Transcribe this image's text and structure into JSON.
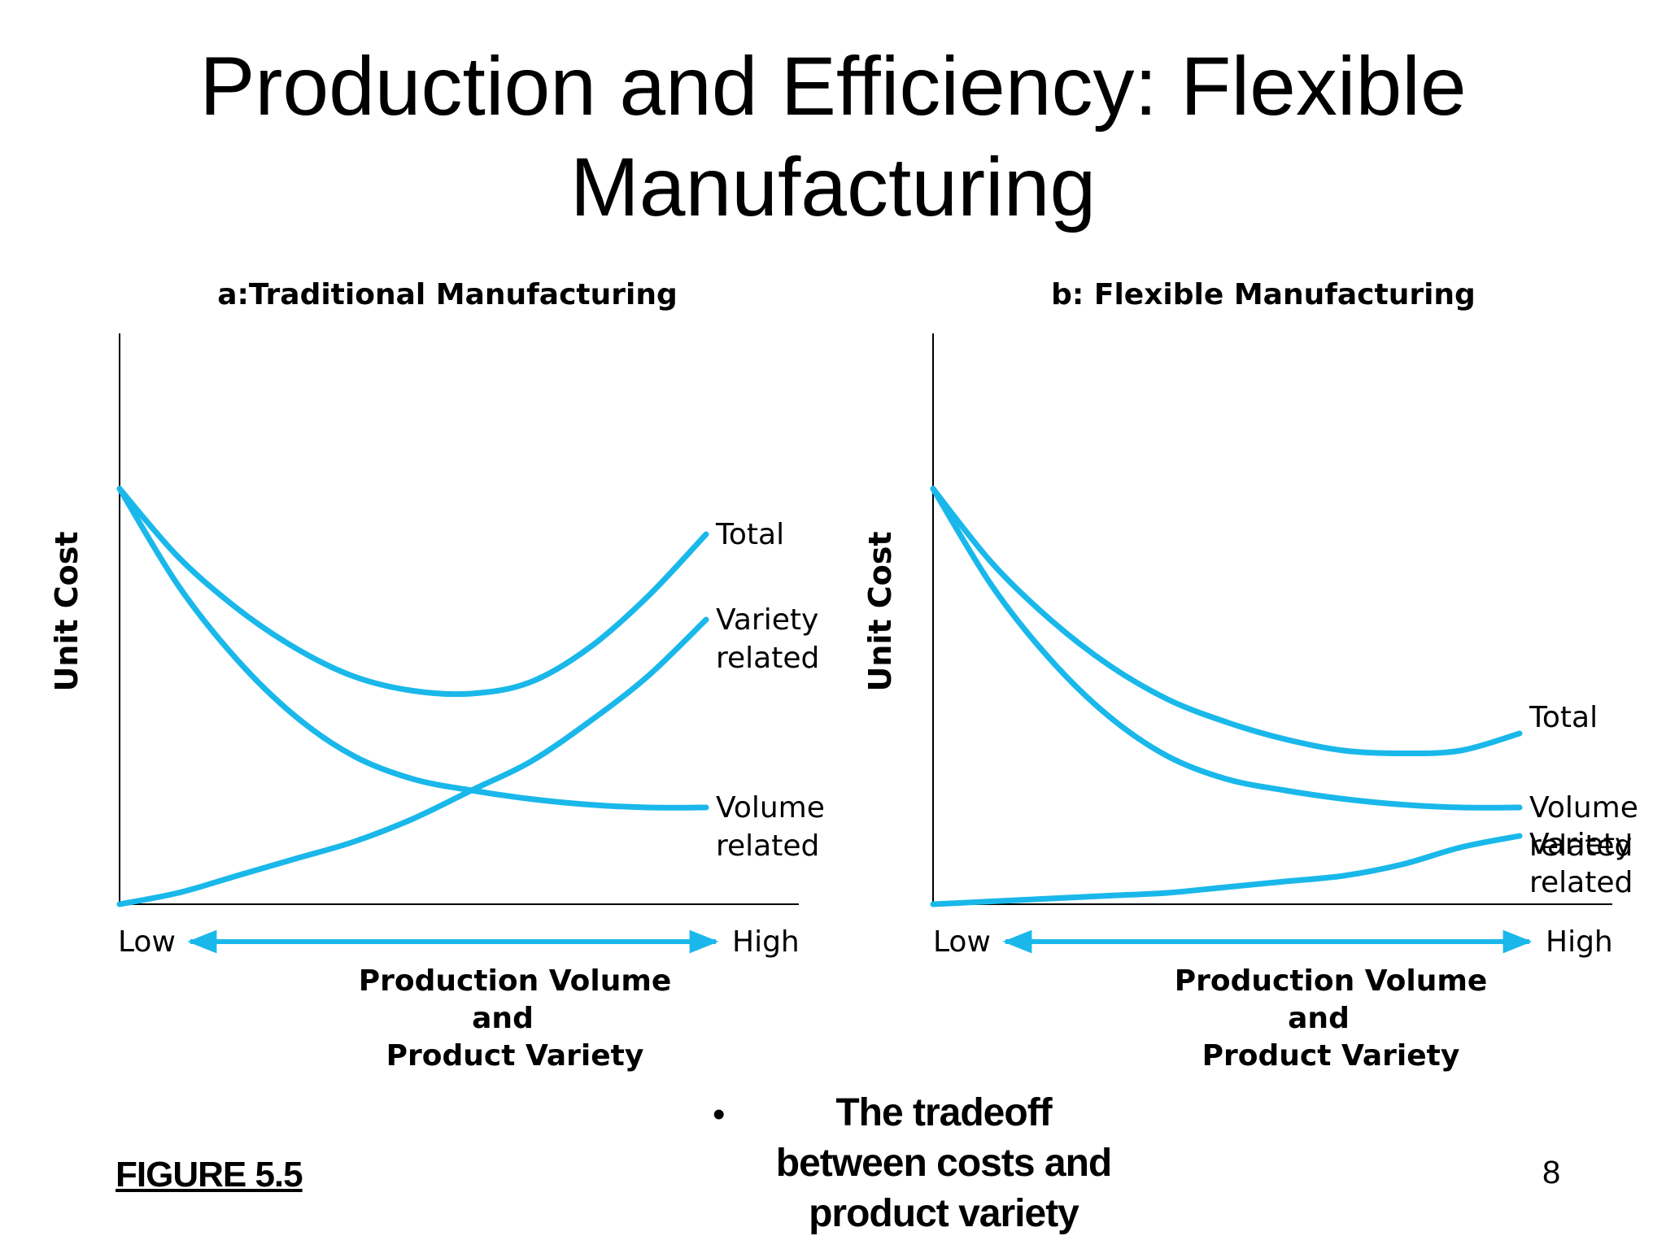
{
  "slide": {
    "title_line1": "Production and Efficiency: Flexible",
    "title_line2": "Manufacturing",
    "figure_caption": "FIGURE 5.5",
    "bullet": "The tradeoff between costs and product variety",
    "page_number": "8"
  },
  "colors": {
    "curve": "#1ab8ea",
    "axis": "#000000",
    "text": "#000000"
  },
  "chart_data": [
    {
      "type": "line",
      "title": "a:Traditional Manufacturing",
      "ylabel": "Unit Cost",
      "xlabel_lines": [
        "Production Volume",
        "and",
        "Product Variety"
      ],
      "x_low_label": "Low",
      "x_high_label": "High",
      "xlim": [
        0,
        1
      ],
      "ylim": [
        0,
        1
      ],
      "grid": false,
      "series": [
        {
          "name": "Total",
          "label_lines": [
            "Total"
          ],
          "x": [
            0,
            0.1,
            0.2,
            0.3,
            0.4,
            0.5,
            0.6,
            0.7,
            0.8,
            0.9,
            1.0
          ],
          "values": [
            0.73,
            0.61,
            0.52,
            0.45,
            0.4,
            0.375,
            0.37,
            0.39,
            0.45,
            0.54,
            0.65
          ]
        },
        {
          "name": "Variety related",
          "label_lines": [
            "Variety",
            "related"
          ],
          "x": [
            0,
            0.1,
            0.2,
            0.3,
            0.4,
            0.5,
            0.6,
            0.7,
            0.8,
            0.9,
            1.0
          ],
          "values": [
            0.0,
            0.02,
            0.05,
            0.08,
            0.11,
            0.15,
            0.2,
            0.25,
            0.32,
            0.4,
            0.5
          ]
        },
        {
          "name": "Volume related",
          "label_lines": [
            "Volume",
            "related"
          ],
          "x": [
            0,
            0.1,
            0.2,
            0.3,
            0.4,
            0.5,
            0.6,
            0.7,
            0.8,
            0.9,
            1.0
          ],
          "values": [
            0.73,
            0.56,
            0.43,
            0.33,
            0.26,
            0.22,
            0.2,
            0.185,
            0.175,
            0.17,
            0.17
          ]
        }
      ]
    },
    {
      "type": "line",
      "title": "b: Flexible Manufacturing",
      "ylabel": "Unit Cost",
      "xlabel_lines": [
        "Production Volume",
        "and",
        "Product Variety"
      ],
      "x_low_label": "Low",
      "x_high_label": "High",
      "xlim": [
        0,
        1
      ],
      "ylim": [
        0,
        1
      ],
      "grid": false,
      "series": [
        {
          "name": "Total",
          "label_lines": [
            "Total"
          ],
          "x": [
            0,
            0.1,
            0.2,
            0.3,
            0.4,
            0.5,
            0.6,
            0.7,
            0.8,
            0.9,
            1.0
          ],
          "values": [
            0.73,
            0.6,
            0.5,
            0.42,
            0.36,
            0.32,
            0.29,
            0.27,
            0.265,
            0.27,
            0.3
          ]
        },
        {
          "name": "Volume related",
          "label_lines": [
            "Volume",
            "related"
          ],
          "x": [
            0,
            0.1,
            0.2,
            0.3,
            0.4,
            0.5,
            0.6,
            0.7,
            0.8,
            0.9,
            1.0
          ],
          "values": [
            0.73,
            0.56,
            0.43,
            0.33,
            0.26,
            0.22,
            0.2,
            0.185,
            0.175,
            0.17,
            0.17
          ]
        },
        {
          "name": "Variety related",
          "label_lines": [
            "Variety",
            "related"
          ],
          "x": [
            0,
            0.1,
            0.2,
            0.3,
            0.4,
            0.5,
            0.6,
            0.7,
            0.8,
            0.9,
            1.0
          ],
          "values": [
            0.0,
            0.005,
            0.01,
            0.015,
            0.02,
            0.03,
            0.04,
            0.05,
            0.07,
            0.1,
            0.12
          ]
        }
      ]
    }
  ]
}
